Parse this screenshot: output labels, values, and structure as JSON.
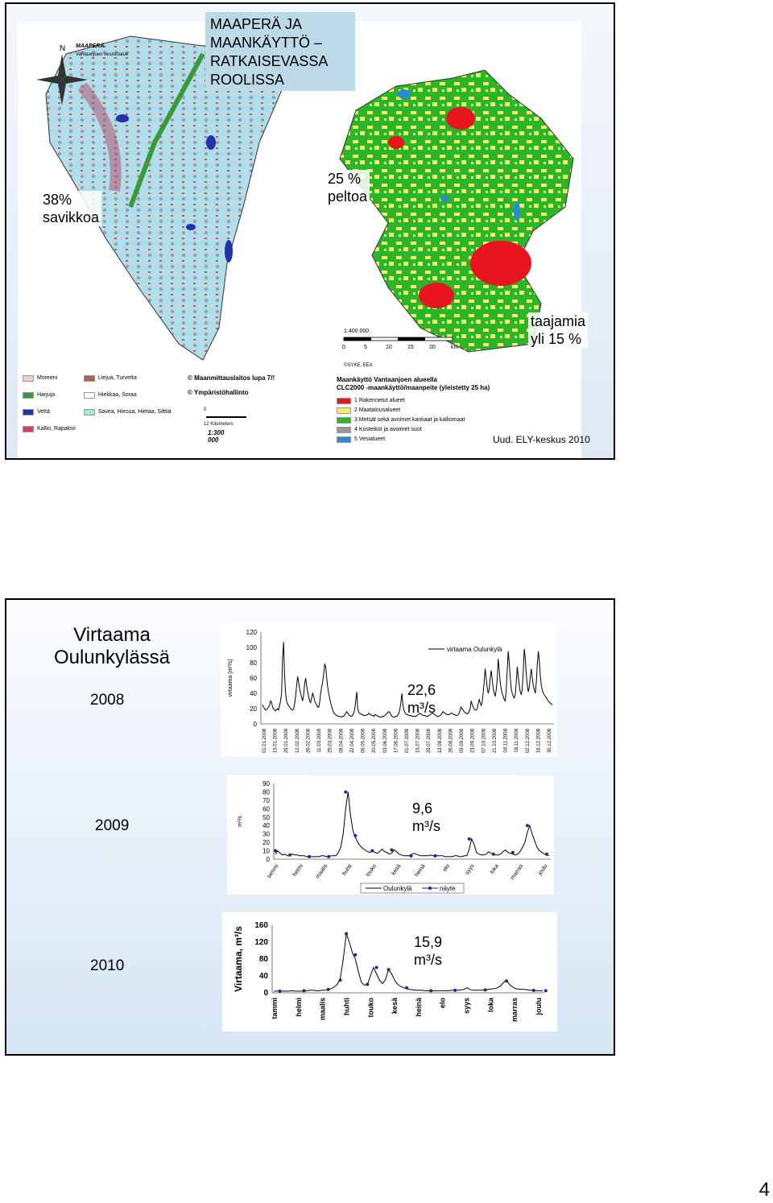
{
  "slide1": {
    "title": "MAAPERÄ JA MAANKÄYTTÖ – RATKAISEVASSA ROOLISSA",
    "title_lines": [
      "MAAPERÄ JA",
      "MAANKÄYTTÖ –",
      "RATKAISEVASSA",
      "ROOLISSA"
    ],
    "label_clay": [
      "38%",
      "savikkoa"
    ],
    "label_field": [
      "25 %",
      "peltoa"
    ],
    "label_urban": [
      "taajamia",
      "yli 15 %"
    ],
    "credit": "Uud. ELY-keskus 2010",
    "left_map": {
      "title": [
        "MAAPERÄ",
        "Vantaanjoen vesistöalue"
      ],
      "legend": [
        {
          "label": "Moreeni",
          "color": "#f0c8e0"
        },
        {
          "label": "Harjuja",
          "color": "#3a9a3a"
        },
        {
          "label": "Vettä",
          "color": "#2233aa"
        },
        {
          "label": "Kallio, Rapakivi",
          "color": "#d83a6a"
        },
        {
          "label": "Liejua, Turvetta",
          "color": "#a06a55"
        },
        {
          "label": "Hiekkaa, Soraa",
          "color": "#ffffff"
        },
        {
          "label": "Savea, Hiesua, Hietaa, Silttiä",
          "color": "#a8e0ec"
        }
      ],
      "copyright": [
        "© Maanmittauslaitos lupa 7/!",
        "© Ympäristöhallinto"
      ],
      "scale_numbers": [
        "0",
        "12",
        "Kilometers"
      ],
      "scale": "1:300 000"
    },
    "right_map": {
      "scale": "1:400 000",
      "scale_numbers": [
        "0",
        "5",
        "10",
        "15",
        "20",
        "km"
      ],
      "source": "©SYKE, EEA",
      "legend_title": [
        "Maankäyttö Vantaanjoen alueella",
        "CLC2000 -maankäyttö/maanpeite (yleistetty 25 ha)"
      ],
      "legend": [
        {
          "label": "1 Rakennetut alueet",
          "color": "#e8141e"
        },
        {
          "label": "2 Maatalousalueet",
          "color": "#f5ee6a"
        },
        {
          "label": "3 Metsät sekä avoimet kankaat ja kalliomaat",
          "color": "#2ab52a"
        },
        {
          "label": "4 Kosteikot ja avoimet suot",
          "color": "#9a9a9a"
        },
        {
          "label": "5 Vesialueet",
          "color": "#2a8ad6"
        }
      ]
    },
    "colors": {
      "forest": "#2ab52a",
      "agri": "#f5ee6a",
      "urban": "#e8141e",
      "water": "#2a8ad6"
    }
  },
  "slide2": {
    "heading": [
      "Virtaama",
      "Oulunkylässä"
    ],
    "year_2008": "2008",
    "year_2009": "2009",
    "year_2010": "2010",
    "avg_2008": [
      "22,6",
      "m³/s"
    ],
    "avg_2009": [
      "9,6",
      "m³/s"
    ],
    "avg_2010": [
      "15,9",
      "m³/s"
    ]
  },
  "page_number": "4",
  "chart_data": [
    {
      "type": "line",
      "title": "",
      "ylabel": "virtaama (m³/s)",
      "ylim": [
        0,
        120
      ],
      "y_ticks": [
        "0",
        "20",
        "40",
        "60",
        "80",
        "100",
        "120"
      ],
      "x_ticks": [
        "01.01.2008",
        "15.01.2008",
        "29.01.2008",
        "12.02.2008",
        "26.02.2008",
        "11.03.2008",
        "25.03.2008",
        "08.04.2008",
        "22.04.2008",
        "06.05.2008",
        "20.05.2008",
        "03.06.2008",
        "17.06.2008",
        "01.07.2008",
        "15.07.2008",
        "29.07.2008",
        "12.08.2008",
        "26.08.2008",
        "09.09.2008",
        "23.09.2008",
        "07.10.2008",
        "21.10.2008",
        "04.11.2008",
        "18.11.2008",
        "02.12.2008",
        "16.12.2008",
        "30.12.2008"
      ],
      "series": [
        {
          "name": "virtaama Oulunkylä",
          "color": "#000000",
          "values": [
            25,
            22,
            20,
            18,
            19,
            20,
            22,
            24,
            30,
            28,
            22,
            20,
            18,
            17,
            19,
            20,
            18,
            24,
            30,
            40,
            85,
            107,
            65,
            40,
            30,
            26,
            24,
            22,
            20,
            19,
            18,
            20,
            26,
            36,
            50,
            62,
            55,
            46,
            40,
            35,
            30,
            38,
            52,
            60,
            50,
            42,
            36,
            30,
            28,
            34,
            40,
            36,
            30,
            27,
            25,
            22,
            22,
            28,
            40,
            48,
            55,
            65,
            78,
            75,
            60,
            48,
            40,
            33,
            27,
            22,
            18,
            15,
            13,
            12,
            11,
            10,
            10,
            10,
            9,
            9,
            10,
            10,
            12,
            14,
            16,
            14,
            12,
            11,
            10,
            10,
            12,
            14,
            20,
            30,
            42,
            20,
            15,
            14,
            13,
            12,
            12,
            11,
            11,
            11,
            12,
            12,
            14,
            13,
            12,
            11,
            11,
            10,
            12,
            12,
            11,
            10,
            10,
            9,
            9,
            9,
            10,
            10,
            11,
            12,
            14,
            15,
            16,
            15,
            12,
            10,
            9,
            9,
            9,
            10,
            10,
            12,
            14,
            20,
            28,
            40,
            25,
            18,
            15,
            13,
            12,
            12,
            11,
            11,
            11,
            10,
            10,
            10,
            10,
            10,
            11,
            12,
            13,
            14,
            13,
            12,
            11,
            11,
            11,
            10,
            10,
            10,
            11,
            12,
            13,
            14,
            14,
            13,
            12,
            11,
            10,
            10,
            10,
            11,
            12,
            14,
            16,
            15,
            14,
            13,
            12,
            12,
            12,
            13,
            14,
            14,
            13,
            12,
            12,
            11,
            11,
            12,
            14,
            18,
            22,
            20,
            18,
            16,
            15,
            14,
            13,
            14,
            16,
            20,
            30,
            26,
            22,
            20,
            18,
            18,
            20,
            26,
            32,
            28,
            24,
            28,
            40,
            55,
            72,
            60,
            48,
            40,
            45,
            60,
            70,
            58,
            46,
            40,
            36,
            44,
            58,
            85,
            70,
            55,
            45,
            40,
            36,
            32,
            30,
            45,
            70,
            95,
            80,
            60,
            46,
            40,
            36,
            34,
            38,
            55,
            75,
            62,
            50,
            42,
            38,
            46,
            70,
            98,
            85,
            65,
            50,
            42,
            48,
            62,
            72,
            60,
            50,
            45,
            40,
            55,
            78,
            95,
            82,
            62,
            50,
            44,
            40,
            38,
            36,
            34,
            32,
            30,
            28,
            27,
            26,
            25
          ]
        }
      ],
      "legend": "top-right",
      "annotation": "22,6 m³/s"
    },
    {
      "type": "line",
      "title": "",
      "ylabel": "m³/s",
      "ylim": [
        0,
        90
      ],
      "y_ticks": [
        "0",
        "10",
        "20",
        "30",
        "40",
        "50",
        "60",
        "70",
        "80",
        "90"
      ],
      "x_ticks": [
        "tammi",
        "helmi",
        "maalis",
        "huhti",
        "touko",
        "kesä",
        "heinä",
        "elo",
        "syys",
        "loka",
        "marras",
        "joulu"
      ],
      "series": [
        {
          "name": "Oulunkylä",
          "color": "#000000",
          "values": [
            6,
            10,
            7,
            5,
            6,
            4,
            4,
            6,
            5,
            5,
            4,
            4,
            4,
            3,
            3,
            3,
            3,
            3,
            3,
            4,
            4,
            3,
            3,
            4,
            4,
            4,
            8,
            14,
            30,
            60,
            80,
            52,
            34,
            26,
            20,
            16,
            13,
            11,
            9,
            8,
            10,
            8,
            7,
            9,
            12,
            9,
            8,
            6,
            7,
            11,
            9,
            6,
            5,
            4,
            4,
            4,
            5,
            7,
            6,
            5,
            4,
            4,
            4,
            4,
            5,
            4,
            4,
            4,
            4,
            4,
            3,
            3,
            3,
            3,
            4,
            4,
            3,
            3,
            4,
            4,
            12,
            24,
            18,
            8,
            6,
            5,
            5,
            6,
            9,
            7,
            6,
            5,
            5,
            6,
            9,
            11,
            8,
            7,
            6,
            5,
            6,
            9,
            14,
            20,
            32,
            40,
            30,
            22,
            14,
            10,
            8,
            6,
            5,
            4
          ]
        },
        {
          "name": "näyte",
          "color": "#1a2a8c",
          "points": [
            [
              0,
              10
            ],
            [
              6,
              5
            ],
            [
              14,
              3
            ],
            [
              22,
              3
            ],
            [
              29,
              80
            ],
            [
              33,
              28
            ],
            [
              40,
              10
            ],
            [
              48,
              11
            ],
            [
              56,
              4
            ],
            [
              66,
              4
            ],
            [
              80,
              24
            ],
            [
              90,
              6
            ],
            [
              98,
              8
            ],
            [
              104,
              40
            ],
            [
              112,
              6
            ]
          ]
        }
      ],
      "legend": "bottom"
    },
    {
      "type": "line",
      "title": "",
      "ylabel": "Virtaama, m³/s",
      "ylim": [
        0,
        160
      ],
      "y_ticks": [
        "0",
        "40",
        "80",
        "120",
        "160"
      ],
      "x_ticks": [
        "tammi",
        "helmi",
        "maalis",
        "huhti",
        "touko",
        "kesä",
        "heinä",
        "elo",
        "syys",
        "loka",
        "marras",
        "joulu"
      ],
      "series": [
        {
          "name": "Oulunkylä",
          "color": "#000000",
          "values": [
            4,
            4,
            4,
            4,
            4,
            4,
            5,
            4,
            4,
            4,
            4,
            5,
            6,
            6,
            5,
            5,
            6,
            6,
            8,
            10,
            14,
            20,
            34,
            80,
            140,
            120,
            95,
            80,
            50,
            25,
            18,
            20,
            40,
            60,
            45,
            30,
            22,
            32,
            55,
            45,
            30,
            20,
            15,
            12,
            10,
            8,
            7,
            6,
            6,
            6,
            5,
            5,
            5,
            5,
            5,
            5,
            5,
            5,
            5,
            6,
            6,
            6,
            7,
            8,
            12,
            8,
            6,
            6,
            6,
            6,
            7,
            8,
            9,
            10,
            12,
            16,
            24,
            30,
            20,
            14,
            10,
            9,
            8,
            8,
            7,
            6,
            5,
            5,
            5,
            5
          ]
        },
        {
          "name": "näyte",
          "color": "#1a2a8c",
          "points": [
            [
              2,
              4
            ],
            [
              10,
              5
            ],
            [
              18,
              8
            ],
            [
              22,
              30
            ],
            [
              24,
              140
            ],
            [
              27,
              90
            ],
            [
              31,
              20
            ],
            [
              34,
              60
            ],
            [
              38,
              55
            ],
            [
              44,
              12
            ],
            [
              52,
              5
            ],
            [
              60,
              6
            ],
            [
              70,
              7
            ],
            [
              77,
              28
            ],
            [
              86,
              6
            ],
            [
              90,
              5
            ]
          ]
        }
      ]
    }
  ]
}
